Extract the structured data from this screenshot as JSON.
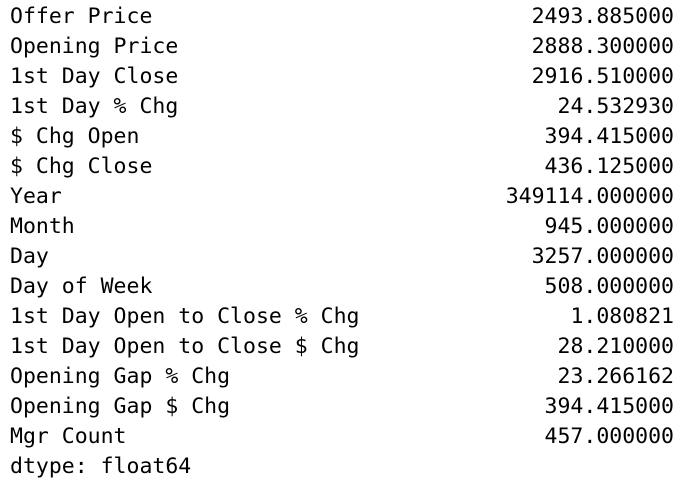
{
  "series": {
    "rows": [
      {
        "label": "Offer Price",
        "value": "2493.885000"
      },
      {
        "label": "Opening Price",
        "value": "2888.300000"
      },
      {
        "label": "1st Day Close",
        "value": "2916.510000"
      },
      {
        "label": "1st Day % Chg",
        "value": "24.532930"
      },
      {
        "label": "$ Chg Open",
        "value": "394.415000"
      },
      {
        "label": "$ Chg Close",
        "value": "436.125000"
      },
      {
        "label": "Year",
        "value": "349114.000000"
      },
      {
        "label": "Month",
        "value": "945.000000"
      },
      {
        "label": "Day",
        "value": "3257.000000"
      },
      {
        "label": "Day of Week",
        "value": "508.000000"
      },
      {
        "label": "1st Day Open to Close % Chg",
        "value": "1.080821"
      },
      {
        "label": "1st Day Open to Close $ Chg",
        "value": "28.210000"
      },
      {
        "label": "Opening Gap % Chg",
        "value": "23.266162"
      },
      {
        "label": "Opening Gap $ Chg",
        "value": "394.415000"
      },
      {
        "label": "Mgr Count",
        "value": "457.000000"
      }
    ],
    "dtype_line": "dtype: float64"
  }
}
